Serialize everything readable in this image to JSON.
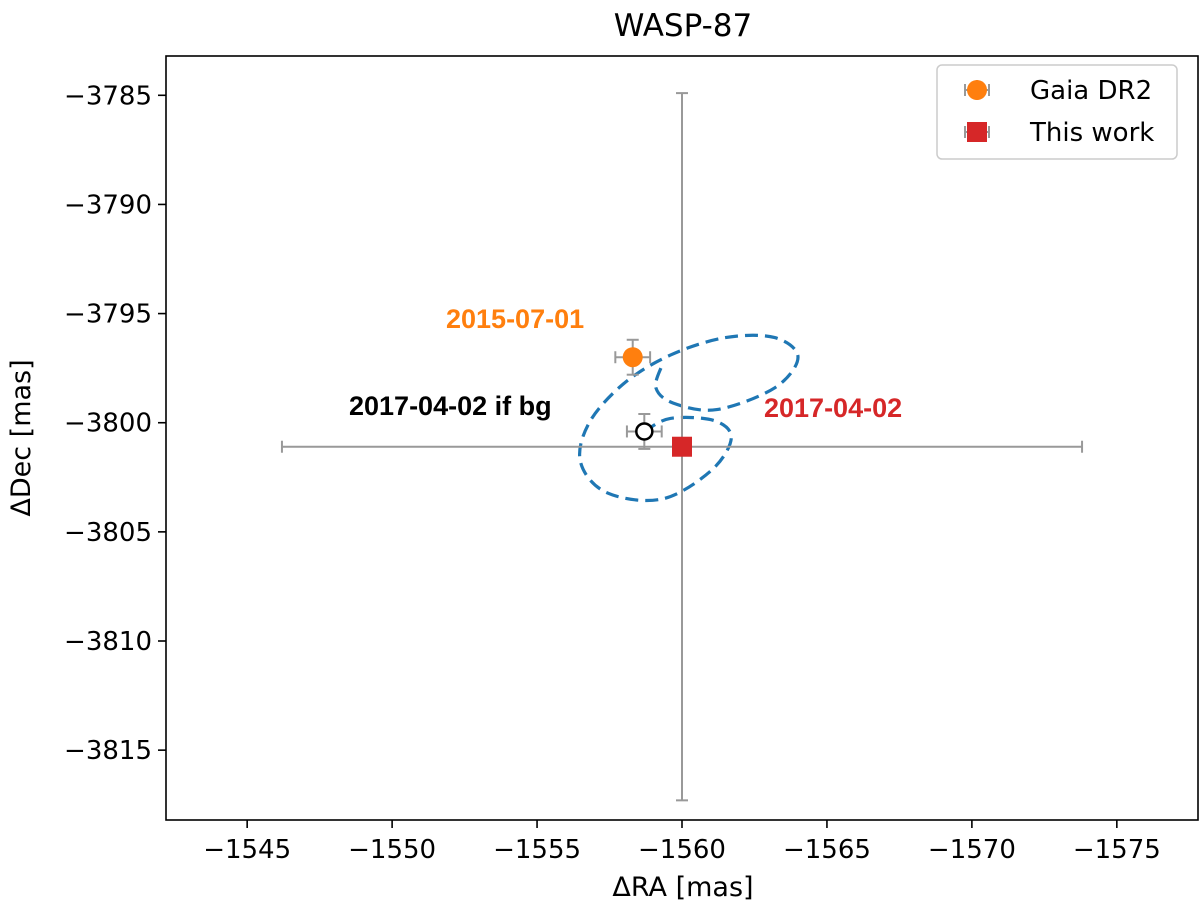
{
  "chart_data": {
    "type": "scatter",
    "title": "WASP-87",
    "xlabel": "ΔRA [mas]",
    "ylabel": "ΔDec [mas]",
    "x_inverted": true,
    "xlim": [
      -1542.2,
      -1577.8
    ],
    "ylim": [
      -3818.2,
      -3783.2
    ],
    "xticks": [
      -1545,
      -1550,
      -1555,
      -1560,
      -1565,
      -1570,
      -1575
    ],
    "xtick_labels": [
      "−1545",
      "−1550",
      "−1555",
      "−1560",
      "−1565",
      "−1570",
      "−1575"
    ],
    "yticks": [
      -3785,
      -3790,
      -3795,
      -3800,
      -3805,
      -3810,
      -3815
    ],
    "ytick_labels": [
      "−3785",
      "−3790",
      "−3795",
      "−3800",
      "−3805",
      "−3810",
      "−3815"
    ],
    "grid": false,
    "legend_position": "top-right",
    "series": [
      {
        "name": "Gaia DR2",
        "marker": "circle",
        "color": "#ff7f0e",
        "points": [
          {
            "x": -1558.3,
            "y": -3797.0,
            "xerr": 0.6,
            "yerr": 0.8
          }
        ]
      },
      {
        "name": "This work",
        "marker": "square",
        "color": "#d62728",
        "points": [
          {
            "x": -1560.0,
            "y": -3801.1,
            "xerr": 13.8,
            "yerr": 16.2
          }
        ]
      }
    ],
    "background_position": {
      "x": -1558.7,
      "y": -3800.4,
      "xerr": 0.6,
      "yerr": 0.8,
      "marker": "open-circle"
    },
    "annotations": [
      {
        "text": "2015-07-01",
        "color": "#ff7f0e"
      },
      {
        "text": "2017-04-02 if bg",
        "color": "#000000"
      },
      {
        "text": "2017-04-02",
        "color": "#d62728"
      }
    ],
    "background_track": {
      "style": "dashed",
      "color": "#1f77b4",
      "points": [
        [
          -1558.7,
          -3800.4
        ],
        [
          -1559.6,
          -3799.8
        ],
        [
          -1561.1,
          -3799.9
        ],
        [
          -1561.7,
          -3800.7
        ],
        [
          -1561.0,
          -3802.2
        ],
        [
          -1559.3,
          -3803.5
        ],
        [
          -1557.4,
          -3803.2
        ],
        [
          -1556.5,
          -3801.8
        ],
        [
          -1556.8,
          -3800.0
        ],
        [
          -1558.0,
          -3798.2
        ],
        [
          -1559.6,
          -3796.9
        ],
        [
          -1561.5,
          -3796.1
        ],
        [
          -1563.2,
          -3796.1
        ],
        [
          -1564.0,
          -3797.0
        ],
        [
          -1563.2,
          -3798.4
        ],
        [
          -1561.2,
          -3799.4
        ],
        [
          -1559.7,
          -3799.1
        ],
        [
          -1559.1,
          -3798.4
        ],
        [
          -1559.3,
          -3797.4
        ]
      ]
    },
    "error_bar_color": "#999999"
  }
}
